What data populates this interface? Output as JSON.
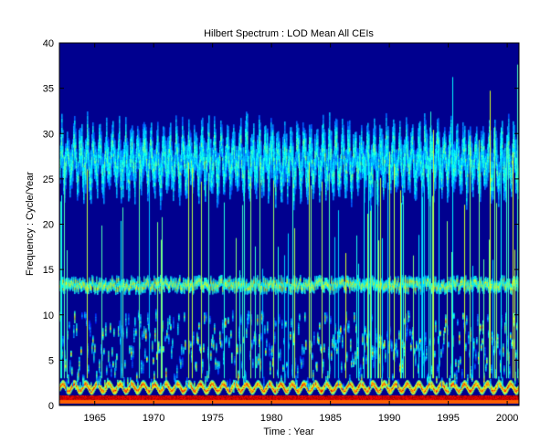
{
  "chart_data": {
    "type": "heatmap",
    "title": "Hilbert Spectrum : LOD Mean All CEIs",
    "xlabel": "Time : Year",
    "ylabel": "Frequency : Cycle/Year",
    "xlim": [
      1962,
      2001
    ],
    "ylim": [
      0,
      40
    ],
    "x_ticks": [
      1965,
      1970,
      1975,
      1980,
      1985,
      1990,
      1995,
      2000
    ],
    "y_ticks": [
      0,
      5,
      10,
      15,
      20,
      25,
      30,
      35,
      40
    ],
    "colormap": "jet",
    "background_color": "#00008f",
    "grid": false,
    "legend": "none",
    "bands": [
      {
        "name": "",
        "freq_center": 0.8,
        "freq_width": 0.6,
        "intensity": 1.0
      },
      {
        "name": "",
        "freq_center": 2.0,
        "freq_width": 0.8,
        "intensity": 0.85
      },
      {
        "name": "",
        "freq_center": 6.0,
        "freq_width": 4.0,
        "intensity": 0.4
      },
      {
        "name": "",
        "freq_center": 13.3,
        "freq_width": 1.2,
        "intensity": 0.6
      },
      {
        "name": "",
        "freq_center": 27.0,
        "freq_width": 5.0,
        "intensity": 0.45
      }
    ]
  }
}
